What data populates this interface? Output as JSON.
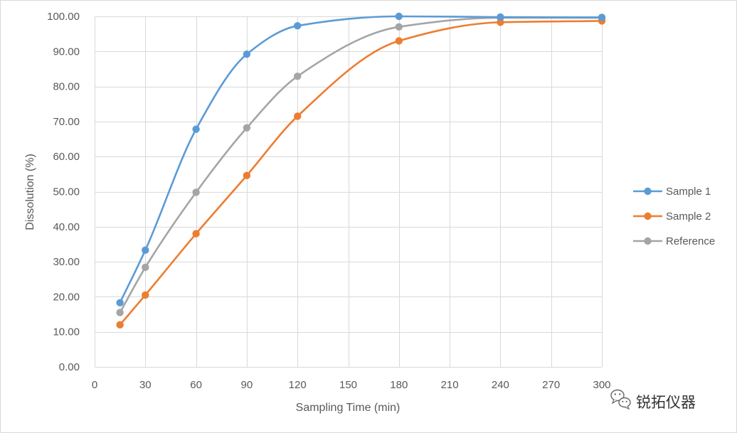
{
  "chart_data": {
    "type": "line",
    "title": "",
    "xlabel": "Sampling Time (min)",
    "ylabel": "Dissolution (%)",
    "xlim": [
      0,
      300
    ],
    "ylim": [
      0,
      100
    ],
    "x_ticks": [
      "0",
      "30",
      "60",
      "90",
      "120",
      "150",
      "180",
      "210",
      "240",
      "270",
      "300"
    ],
    "y_ticks": [
      "0.00",
      "10.00",
      "20.00",
      "30.00",
      "40.00",
      "50.00",
      "60.00",
      "70.00",
      "80.00",
      "90.00",
      "100.00"
    ],
    "grid": true,
    "smooth": true,
    "legend_position": "right",
    "x": [
      15,
      30,
      60,
      90,
      120,
      180,
      240,
      300
    ],
    "series": [
      {
        "name": "Sample 1",
        "color": "#5B9BD5",
        "values": [
          18.3,
          33.3,
          67.8,
          89.2,
          97.3,
          100.0,
          99.8,
          99.7
        ]
      },
      {
        "name": "Sample 2",
        "color": "#ED7D31",
        "values": [
          12.0,
          20.5,
          38.0,
          54.6,
          71.5,
          93.0,
          98.3,
          98.7
        ]
      },
      {
        "name": "Reference",
        "color": "#A5A5A5",
        "values": [
          15.5,
          28.4,
          49.8,
          68.2,
          82.9,
          97.0,
          99.6,
          99.6
        ]
      }
    ]
  },
  "watermark": {
    "text": "锐拓仪器",
    "icon": "wechat-icon"
  }
}
